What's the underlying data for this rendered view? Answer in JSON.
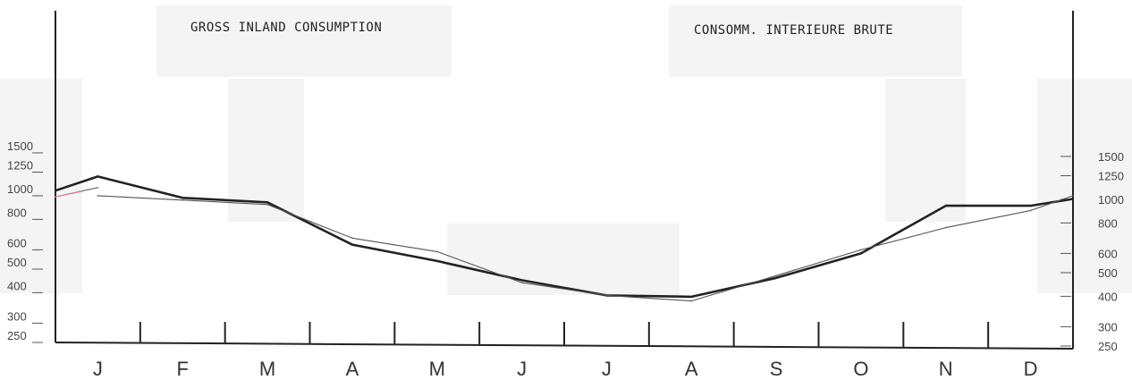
{
  "chart_data": {
    "type": "line",
    "title_left": "GROSS INLAND CONSUMPTION",
    "title_right": "CONSOMM. INTERIEURE BRUTE",
    "scale": "log",
    "ylim": [
      250,
      1750
    ],
    "yticks": [
      250,
      300,
      400,
      500,
      600,
      800,
      1000,
      1250,
      1500
    ],
    "ytick_labels_left": [
      "250",
      "300",
      "400",
      "500",
      "600",
      "800",
      "1000",
      "1250",
      "1500"
    ],
    "ytick_labels_right": [
      "250",
      "300",
      "400",
      "500",
      "600",
      "800",
      "1000",
      "1250",
      "1500"
    ],
    "categories": [
      "J",
      "F",
      "M",
      "A",
      "M",
      "J",
      "J",
      "A",
      "S",
      "O",
      "N",
      "D"
    ],
    "series": [
      {
        "style": "bold",
        "color": "#222222",
        "x": [
          0,
          0.5,
          1.5,
          2.5,
          3.5,
          4.5,
          5.5,
          6.5,
          7.5,
          8.5,
          9.5,
          10.5,
          11.5,
          12.0
        ],
        "values": [
          1050,
          1200,
          980,
          940,
          630,
          540,
          450,
          390,
          385,
          460,
          580,
          910,
          910,
          970
        ]
      },
      {
        "style": "thin",
        "color": "#555555",
        "x": [
          0.5,
          1.5,
          2.5,
          3.5,
          4.5,
          5.5,
          6.5,
          7.5,
          8.5,
          9.5,
          10.5,
          11.5,
          12.0
        ],
        "values": [
          1000,
          960,
          920,
          670,
          590,
          440,
          390,
          370,
          470,
          600,
          740,
          870,
          1000
        ]
      },
      {
        "style": "thin",
        "color": "#666666",
        "x": [
          0.5,
          0.0
        ],
        "values": [
          1080,
          990
        ]
      },
      {
        "style": "thin",
        "color": "#e07aa0",
        "x": [
          0.0,
          0.3
        ],
        "values": [
          990,
          1040
        ]
      }
    ]
  }
}
